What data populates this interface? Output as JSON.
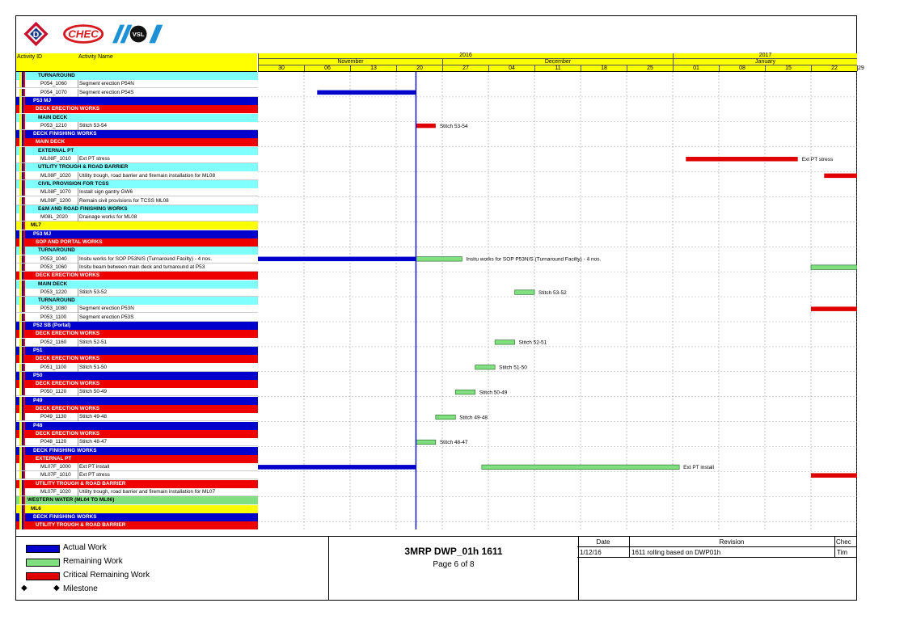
{
  "logos": [
    {
      "name": "dragages-logo",
      "letter": "D",
      "color": "#c8102e"
    },
    {
      "name": "chec-logo",
      "text": "CHEC",
      "color": "#d71920"
    },
    {
      "name": "vsl-logo",
      "text": "VSL",
      "color": "#1e90d6"
    }
  ],
  "header": {
    "activity_id": "Activity ID",
    "activity_name": "Activity Name"
  },
  "timeline": {
    "years": [
      {
        "label": "2016",
        "start": 0,
        "span": 9
      },
      {
        "label": "2017",
        "start": 9,
        "span": 5
      }
    ],
    "months": [
      {
        "label": "November",
        "start": 0,
        "span": 4
      },
      {
        "label": "December",
        "start": 4,
        "span": 5
      },
      {
        "label": "January",
        "start": 9,
        "span": 5
      }
    ],
    "weeks": [
      "30",
      "06",
      "13",
      "20",
      "27",
      "04",
      "11",
      "18",
      "25",
      "01",
      "08",
      "15",
      "22",
      "29"
    ]
  },
  "chart_data": {
    "type": "gantt",
    "x_axis_units": "days since 30 Oct 2016",
    "data_date": "2016-11-23",
    "rows": [
      {
        "kind": "group",
        "level": 3,
        "label": "TURNAROUND"
      },
      {
        "kind": "task",
        "id": "P054_1060",
        "name": "Segment erection P54N"
      },
      {
        "kind": "task",
        "id": "P054_1070",
        "name": "Segment erection P54S",
        "bars": [
          {
            "type": "actual",
            "start": 9,
            "end": 24
          }
        ]
      },
      {
        "kind": "group",
        "level": 1,
        "label": "P53 MJ"
      },
      {
        "kind": "group",
        "level": 2,
        "label": "DECK ERECTION WORKS"
      },
      {
        "kind": "group",
        "level": 3,
        "label": "MAIN DECK"
      },
      {
        "kind": "task",
        "id": "P053_1210",
        "name": "Stitch 53-54",
        "bars": [
          {
            "type": "critical",
            "start": 24,
            "end": 27,
            "label": "Stitch 53-54"
          }
        ]
      },
      {
        "kind": "group",
        "level": 1,
        "label": "DECK FINISHING WORKS"
      },
      {
        "kind": "group",
        "level": 2,
        "label": "MAIN DECK"
      },
      {
        "kind": "group",
        "level": 3,
        "label": "EXTERNAL PT"
      },
      {
        "kind": "task",
        "id": "ML08F_1010",
        "name": "Ext PT stress",
        "bars": [
          {
            "type": "critical",
            "start": 65,
            "end": 82,
            "label": "Ext PT stress"
          }
        ]
      },
      {
        "kind": "group",
        "level": 3,
        "label": "UTILITY TROUGH & ROAD BARRIER"
      },
      {
        "kind": "task",
        "id": "ML08F_1020",
        "name": "Utility trough, road barrier and firemain installation for ML08",
        "bars": [
          {
            "type": "critical",
            "start": 86,
            "end": 92
          }
        ]
      },
      {
        "kind": "group",
        "level": 3,
        "label": "CIVIL PROVISION FOR TCSS"
      },
      {
        "kind": "task",
        "id": "ML08F_1070",
        "name": "Install sign gantry GW6"
      },
      {
        "kind": "task",
        "id": "ML08F_1200",
        "name": "Remain civil provisions for TCSS ML08"
      },
      {
        "kind": "group",
        "level": 3,
        "label": "E&M AND ROAD FINISHING WORKS"
      },
      {
        "kind": "task",
        "id": "M08L_2020",
        "name": "Drainage works for ML08"
      },
      {
        "kind": "group",
        "level": 0,
        "label": "ML7"
      },
      {
        "kind": "group",
        "level": 1,
        "label": "P53 MJ"
      },
      {
        "kind": "group",
        "level": 2,
        "label": "SOP AND PORTAL WORKS"
      },
      {
        "kind": "group",
        "level": 3,
        "label": "TURNAROUND"
      },
      {
        "kind": "task",
        "id": "P053_1040",
        "name": "Insitu works for SOP P53N/S (Turnaround Facilty) - 4 nos.",
        "bars": [
          {
            "type": "actual",
            "start": 0,
            "end": 24
          },
          {
            "type": "remaining",
            "start": 24,
            "end": 31,
            "label": "Insitu works for SOP P53N/S (Turnaround Facilty) - 4 nos."
          }
        ]
      },
      {
        "kind": "task",
        "id": "P053_1060",
        "name": "Insitu beam between main deck and turnaround at P53",
        "bars": [
          {
            "type": "remaining",
            "start": 84,
            "end": 92
          }
        ]
      },
      {
        "kind": "group",
        "level": 2,
        "label": "DECK ERECTION WORKS"
      },
      {
        "kind": "group",
        "level": 3,
        "label": "MAIN DECK"
      },
      {
        "kind": "task",
        "id": "P053_1220",
        "name": "Stitch 53-52",
        "bars": [
          {
            "type": "remaining",
            "start": 39,
            "end": 42,
            "label": "Stitch 53-52"
          }
        ]
      },
      {
        "kind": "group",
        "level": 3,
        "label": "TURNAROUND"
      },
      {
        "kind": "task",
        "id": "P053_1080",
        "name": "Segment erection P53N",
        "bars": [
          {
            "type": "critical",
            "start": 84,
            "end": 92
          }
        ]
      },
      {
        "kind": "task",
        "id": "P053_1100",
        "name": "Segment erection P53S"
      },
      {
        "kind": "group",
        "level": 1,
        "label": "P52 SB (Portal)"
      },
      {
        "kind": "group",
        "level": 2,
        "label": "DECK ERECTION WORKS"
      },
      {
        "kind": "task",
        "id": "P052_1160",
        "name": "Stitch 52-51",
        "bars": [
          {
            "type": "remaining",
            "start": 36,
            "end": 39,
            "label": "Stitch 52-51"
          }
        ]
      },
      {
        "kind": "group",
        "level": 1,
        "label": "P51"
      },
      {
        "kind": "group",
        "level": 2,
        "label": "DECK ERECTION WORKS"
      },
      {
        "kind": "task",
        "id": "P051_1100",
        "name": "Stitch 51-50",
        "bars": [
          {
            "type": "remaining",
            "start": 33,
            "end": 36,
            "label": "Stitch 51-50"
          }
        ]
      },
      {
        "kind": "group",
        "level": 1,
        "label": "P50"
      },
      {
        "kind": "group",
        "level": 2,
        "label": "DECK ERECTION WORKS"
      },
      {
        "kind": "task",
        "id": "P050_1120",
        "name": "Stitch 50-49",
        "bars": [
          {
            "type": "remaining",
            "start": 30,
            "end": 33,
            "label": "Stitch 50-49"
          }
        ]
      },
      {
        "kind": "group",
        "level": 1,
        "label": "P49"
      },
      {
        "kind": "group",
        "level": 2,
        "label": "DECK ERECTION WORKS"
      },
      {
        "kind": "task",
        "id": "P049_1130",
        "name": "Stitch 49-48",
        "bars": [
          {
            "type": "remaining",
            "start": 27,
            "end": 30,
            "label": "Stitch 49-48"
          }
        ]
      },
      {
        "kind": "group",
        "level": 1,
        "label": "P48"
      },
      {
        "kind": "group",
        "level": 2,
        "label": "DECK ERECTION WORKS"
      },
      {
        "kind": "task",
        "id": "P048_1120",
        "name": "Stitch 48-47",
        "bars": [
          {
            "type": "remaining",
            "start": 24,
            "end": 27,
            "label": "Stitch 48-47"
          }
        ]
      },
      {
        "kind": "group",
        "level": 1,
        "label": "DECK FINISHING WORKS"
      },
      {
        "kind": "group",
        "level": 2,
        "label": "EXTERNAL PT"
      },
      {
        "kind": "task",
        "id": "ML07F_1000",
        "name": "Ext PT install",
        "bars": [
          {
            "type": "actual",
            "start": 0,
            "end": 24
          },
          {
            "type": "remaining",
            "start": 34,
            "end": 64,
            "label": "Ext PT install"
          }
        ]
      },
      {
        "kind": "task",
        "id": "ML07F_1010",
        "name": "Ext PT stress",
        "bars": [
          {
            "type": "critical",
            "start": 84,
            "end": 92
          }
        ]
      },
      {
        "kind": "group",
        "level": 2,
        "label": "UTILITY TROUGH & ROAD BARRIER"
      },
      {
        "kind": "task",
        "id": "ML07F_1020",
        "name": "Utility trough, road barrier and firemain installation for ML07"
      },
      {
        "kind": "group",
        "level": 4,
        "label": "WESTERN WATER (ML04 TO ML06)"
      },
      {
        "kind": "group",
        "level": 0,
        "label": "ML6"
      },
      {
        "kind": "group",
        "level": 1,
        "label": "DECK FINISHING WORKS"
      },
      {
        "kind": "group",
        "level": 2,
        "label": "UTILITY TROUGH & ROAD BARRIER"
      }
    ]
  },
  "legend": [
    {
      "label": "Actual Work",
      "color": "#0000cc"
    },
    {
      "label": "Remaining Work",
      "color": "#80e080"
    },
    {
      "label": "Critical Remaining Work",
      "color": "#e00000"
    },
    {
      "label": "Milestone",
      "glyph": "◆"
    }
  ],
  "doc": {
    "title": "3MRP DWP_01h 1611",
    "page": "Page 6 of 8"
  },
  "revision": {
    "headers": {
      "date": "Date",
      "revision": "Revision",
      "checked": "Chec"
    },
    "rows": [
      {
        "date": "1/12/16",
        "revision": "1611 rolling based on DWP01h",
        "checked": "Tim"
      }
    ]
  },
  "colors": {
    "level0": "#ffff00",
    "level1": "#0000cc",
    "level2": "#ee0000",
    "level3": "#80ffff",
    "level4": "#80e080",
    "actual": "#0000cc",
    "remaining": "#80e080",
    "critical": "#e00000"
  }
}
